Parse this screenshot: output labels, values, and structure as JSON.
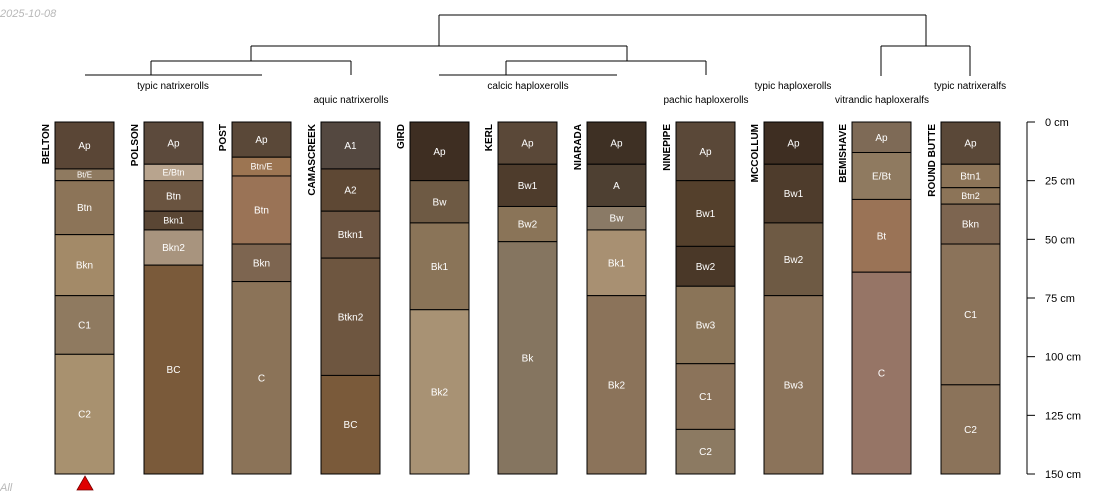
{
  "stamp": {
    "date": "2025-10-08",
    "footer": "All"
  },
  "colors": {
    "line": "#000000",
    "marker": "#e00000",
    "horizon_text": "#ffffff"
  },
  "depth_axis": {
    "unit": "cm",
    "min": 0,
    "max": 150,
    "ticks": [
      {
        "value": 0,
        "label": "0 cm"
      },
      {
        "value": 25,
        "label": "25 cm"
      },
      {
        "value": 50,
        "label": "50 cm"
      },
      {
        "value": 75,
        "label": "75 cm"
      },
      {
        "value": 100,
        "label": "100 cm"
      },
      {
        "value": 125,
        "label": "125 cm"
      },
      {
        "value": 150,
        "label": "150 cm"
      }
    ]
  },
  "groups": [
    {
      "label": "typic natrixerolls"
    },
    {
      "label": "aquic natrixerolls"
    },
    {
      "label": "calcic haploxerolls"
    },
    {
      "label": "pachic haploxerolls"
    },
    {
      "label": "typic haploxerolls"
    },
    {
      "label": "vitrandic haploxeralfs"
    },
    {
      "label": "typic natrixeralfs"
    }
  ],
  "marker": {
    "profile": "BELTON",
    "shape": "triangle-up"
  },
  "profiles": [
    {
      "name": "BELTON",
      "horizons": [
        {
          "name": "Ap",
          "top": 0,
          "bottom": 20,
          "color": "#5a4636"
        },
        {
          "name": "Bt/E",
          "top": 20,
          "bottom": 25,
          "color": "#8f7a60"
        },
        {
          "name": "Btn",
          "top": 25,
          "bottom": 48,
          "color": "#8c7458"
        },
        {
          "name": "Bkn",
          "top": 48,
          "bottom": 74,
          "color": "#a38a68"
        },
        {
          "name": "C1",
          "top": 74,
          "bottom": 99,
          "color": "#8f7a60"
        },
        {
          "name": "C2",
          "top": 99,
          "bottom": 150,
          "color": "#a8916f"
        }
      ]
    },
    {
      "name": "POLSON",
      "horizons": [
        {
          "name": "Ap",
          "top": 0,
          "bottom": 18,
          "color": "#5c4a3c"
        },
        {
          "name": "E/Btn",
          "top": 18,
          "bottom": 25,
          "color": "#b8a48e"
        },
        {
          "name": "Btn",
          "top": 25,
          "bottom": 38,
          "color": "#6a5440"
        },
        {
          "name": "Bkn1",
          "top": 38,
          "bottom": 46,
          "color": "#5a4634"
        },
        {
          "name": "Bkn2",
          "top": 46,
          "bottom": 61,
          "color": "#a8947e"
        },
        {
          "name": "BC",
          "top": 61,
          "bottom": 150,
          "color": "#7a5a3a"
        }
      ]
    },
    {
      "name": "POST",
      "horizons": [
        {
          "name": "Ap",
          "top": 0,
          "bottom": 15,
          "color": "#5a4838"
        },
        {
          "name": "Btn/E",
          "top": 15,
          "bottom": 23,
          "color": "#9c7552"
        },
        {
          "name": "Btn",
          "top": 23,
          "bottom": 52,
          "color": "#9a7356"
        },
        {
          "name": "Bkn",
          "top": 52,
          "bottom": 68,
          "color": "#7d6550"
        },
        {
          "name": "C",
          "top": 68,
          "bottom": 150,
          "color": "#8b7358"
        }
      ]
    },
    {
      "name": "CAMASCREEK",
      "horizons": [
        {
          "name": "A1",
          "top": 0,
          "bottom": 20,
          "color": "#544840"
        },
        {
          "name": "A2",
          "top": 20,
          "bottom": 38,
          "color": "#5e4834"
        },
        {
          "name": "Btkn1",
          "top": 38,
          "bottom": 58,
          "color": "#6b5441"
        },
        {
          "name": "Btkn2",
          "top": 58,
          "bottom": 108,
          "color": "#6e5640"
        },
        {
          "name": "BC",
          "top": 108,
          "bottom": 150,
          "color": "#7a5a3a"
        }
      ]
    },
    {
      "name": "GIRD",
      "horizons": [
        {
          "name": "Ap",
          "top": 0,
          "bottom": 25,
          "color": "#3e2e22"
        },
        {
          "name": "Bw",
          "top": 25,
          "bottom": 43,
          "color": "#6e5a44"
        },
        {
          "name": "Bk1",
          "top": 43,
          "bottom": 80,
          "color": "#8a7458"
        },
        {
          "name": "Bk2",
          "top": 80,
          "bottom": 150,
          "color": "#a89274"
        }
      ]
    },
    {
      "name": "KERL",
      "horizons": [
        {
          "name": "Ap",
          "top": 0,
          "bottom": 18,
          "color": "#5a4838"
        },
        {
          "name": "Bw1",
          "top": 18,
          "bottom": 36,
          "color": "#4e3c2c"
        },
        {
          "name": "Bw2",
          "top": 36,
          "bottom": 51,
          "color": "#8a7458"
        },
        {
          "name": "Bk",
          "top": 51,
          "bottom": 150,
          "color": "#857560"
        }
      ]
    },
    {
      "name": "NIARADA",
      "horizons": [
        {
          "name": "Ap",
          "top": 0,
          "bottom": 18,
          "color": "#3e3024"
        },
        {
          "name": "A",
          "top": 18,
          "bottom": 36,
          "color": "#4e4032"
        },
        {
          "name": "Bw",
          "top": 36,
          "bottom": 46,
          "color": "#8a7a66"
        },
        {
          "name": "Bk1",
          "top": 46,
          "bottom": 74,
          "color": "#a89072"
        },
        {
          "name": "Bk2",
          "top": 74,
          "bottom": 150,
          "color": "#8b735a"
        }
      ]
    },
    {
      "name": "NINEPIPE",
      "horizons": [
        {
          "name": "Ap",
          "top": 0,
          "bottom": 25,
          "color": "#5a4838"
        },
        {
          "name": "Bw1",
          "top": 25,
          "bottom": 53,
          "color": "#54402c"
        },
        {
          "name": "Bw2",
          "top": 53,
          "bottom": 70,
          "color": "#4a3828"
        },
        {
          "name": "Bw3",
          "top": 70,
          "bottom": 103,
          "color": "#8a7458"
        },
        {
          "name": "C1",
          "top": 103,
          "bottom": 131,
          "color": "#8b735a"
        },
        {
          "name": "C2",
          "top": 131,
          "bottom": 150,
          "color": "#8c7a62"
        }
      ]
    },
    {
      "name": "MCCOLLUM",
      "horizons": [
        {
          "name": "Ap",
          "top": 0,
          "bottom": 18,
          "color": "#3e2e22"
        },
        {
          "name": "Bw1",
          "top": 18,
          "bottom": 43,
          "color": "#4e3c2c"
        },
        {
          "name": "Bw2",
          "top": 43,
          "bottom": 74,
          "color": "#6e5a44"
        },
        {
          "name": "Bw3",
          "top": 74,
          "bottom": 150,
          "color": "#8b735a"
        }
      ]
    },
    {
      "name": "BEMISHAVE",
      "horizons": [
        {
          "name": "Ap",
          "top": 0,
          "bottom": 13,
          "color": "#7e6a56"
        },
        {
          "name": "E/Bt",
          "top": 13,
          "bottom": 33,
          "color": "#8f7a60"
        },
        {
          "name": "Bt",
          "top": 33,
          "bottom": 64,
          "color": "#9a7356"
        },
        {
          "name": "C",
          "top": 64,
          "bottom": 150,
          "color": "#967566"
        }
      ]
    },
    {
      "name": "ROUND BUTTE",
      "horizons": [
        {
          "name": "Ap",
          "top": 0,
          "bottom": 18,
          "color": "#5a4838"
        },
        {
          "name": "Btn1",
          "top": 18,
          "bottom": 28,
          "color": "#8c7458"
        },
        {
          "name": "Btn2",
          "top": 28,
          "bottom": 35,
          "color": "#8c7458"
        },
        {
          "name": "Bkn",
          "top": 35,
          "bottom": 52,
          "color": "#7d6550"
        },
        {
          "name": "C1",
          "top": 52,
          "bottom": 112,
          "color": "#8b735a"
        },
        {
          "name": "C2",
          "top": 112,
          "bottom": 150,
          "color": "#8b735a"
        }
      ]
    }
  ]
}
